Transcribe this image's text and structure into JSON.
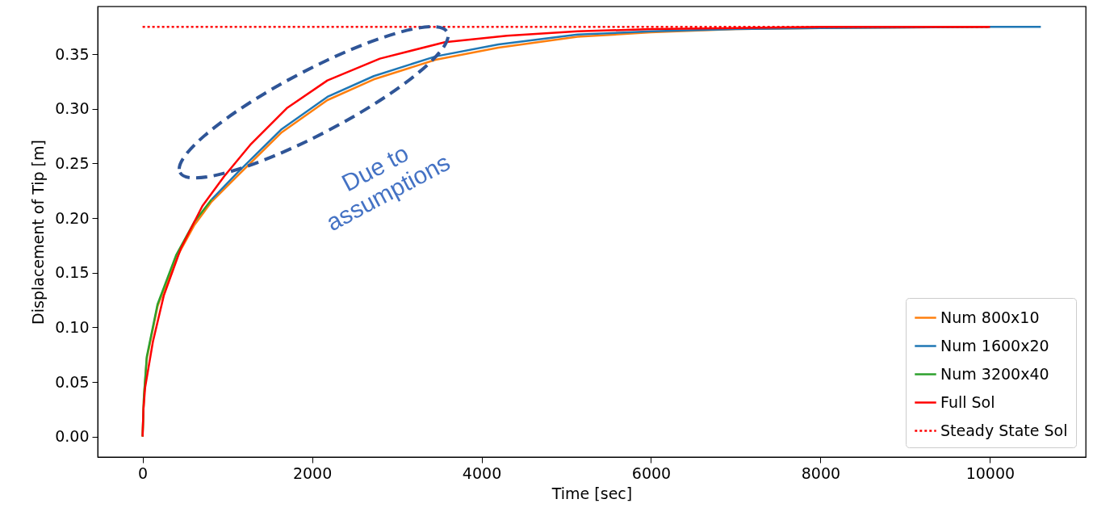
{
  "chart_data": {
    "type": "line",
    "xlabel": "Time [sec]",
    "ylabel": "Displacement of Tip [m]",
    "xlim": [
      -530,
      11130
    ],
    "ylim": [
      -0.01875,
      0.39375
    ],
    "xticks": [
      0,
      2000,
      4000,
      6000,
      8000,
      10000
    ],
    "yticks": [
      {
        "value": 0,
        "label": "0.00"
      },
      {
        "value": 0.05,
        "label": "0.05"
      },
      {
        "value": 0.1,
        "label": "0.10"
      },
      {
        "value": 0.15,
        "label": "0.15"
      },
      {
        "value": 0.2,
        "label": "0.20"
      },
      {
        "value": 0.25,
        "label": "0.25"
      },
      {
        "value": 0.3,
        "label": "0.30"
      },
      {
        "value": 0.35,
        "label": "0.35"
      }
    ],
    "grid": false,
    "legend": "bottom right",
    "marker": "none",
    "annotations": [
      "Due to\nassumptions"
    ],
    "series": [
      {
        "name": "Num 800x10",
        "color": "#ff7f0e",
        "line_style": "solid",
        "x": [
          0,
          15,
          49,
          176,
          395,
          614,
          814,
          1124,
          1634,
          2181,
          2728,
          3457,
          4200,
          5133,
          6000,
          7000,
          8000,
          10000
        ],
        "values": [
          0,
          0.035,
          0.071,
          0.119,
          0.163,
          0.194,
          0.215,
          0.239,
          0.278,
          0.308,
          0.327,
          0.345,
          0.356,
          0.366,
          0.37,
          0.373,
          0.374,
          0.375
        ]
      },
      {
        "name": "Num 1600x20",
        "color": "#1f77b4",
        "line_style": "solid",
        "x": [
          814,
          1124,
          1634,
          2181,
          2728,
          3457,
          4200,
          5133,
          6000,
          7000,
          8000,
          10000,
          10600
        ],
        "values": [
          0.217,
          0.242,
          0.281,
          0.311,
          0.33,
          0.348,
          0.359,
          0.368,
          0.371,
          0.373,
          0.374,
          0.375,
          0.375
        ]
      },
      {
        "name": "Num 3200x40",
        "color": "#2ca02c",
        "line_style": "solid",
        "x": [
          0,
          15,
          49,
          176,
          395,
          614,
          814
        ],
        "values": [
          0,
          0.036,
          0.073,
          0.121,
          0.166,
          0.197,
          0.217
        ]
      },
      {
        "name": "Full Sol",
        "color": "#ff0000",
        "line_style": "solid",
        "x": [
          0,
          10,
          30,
          122,
          250,
          450,
          705,
          960,
          1270,
          1708,
          2181,
          2800,
          3567,
          4300,
          5133,
          6000,
          7000,
          8000,
          10000
        ],
        "values": [
          0,
          0.025,
          0.045,
          0.087,
          0.129,
          0.172,
          0.211,
          0.238,
          0.267,
          0.301,
          0.326,
          0.346,
          0.361,
          0.367,
          0.371,
          0.373,
          0.374,
          0.375,
          0.375
        ]
      },
      {
        "name": "Steady State Sol",
        "color": "#ff0000",
        "line_style": "dotted",
        "x": [
          0,
          10000
        ],
        "values": [
          0.375,
          0.375
        ]
      }
    ]
  }
}
